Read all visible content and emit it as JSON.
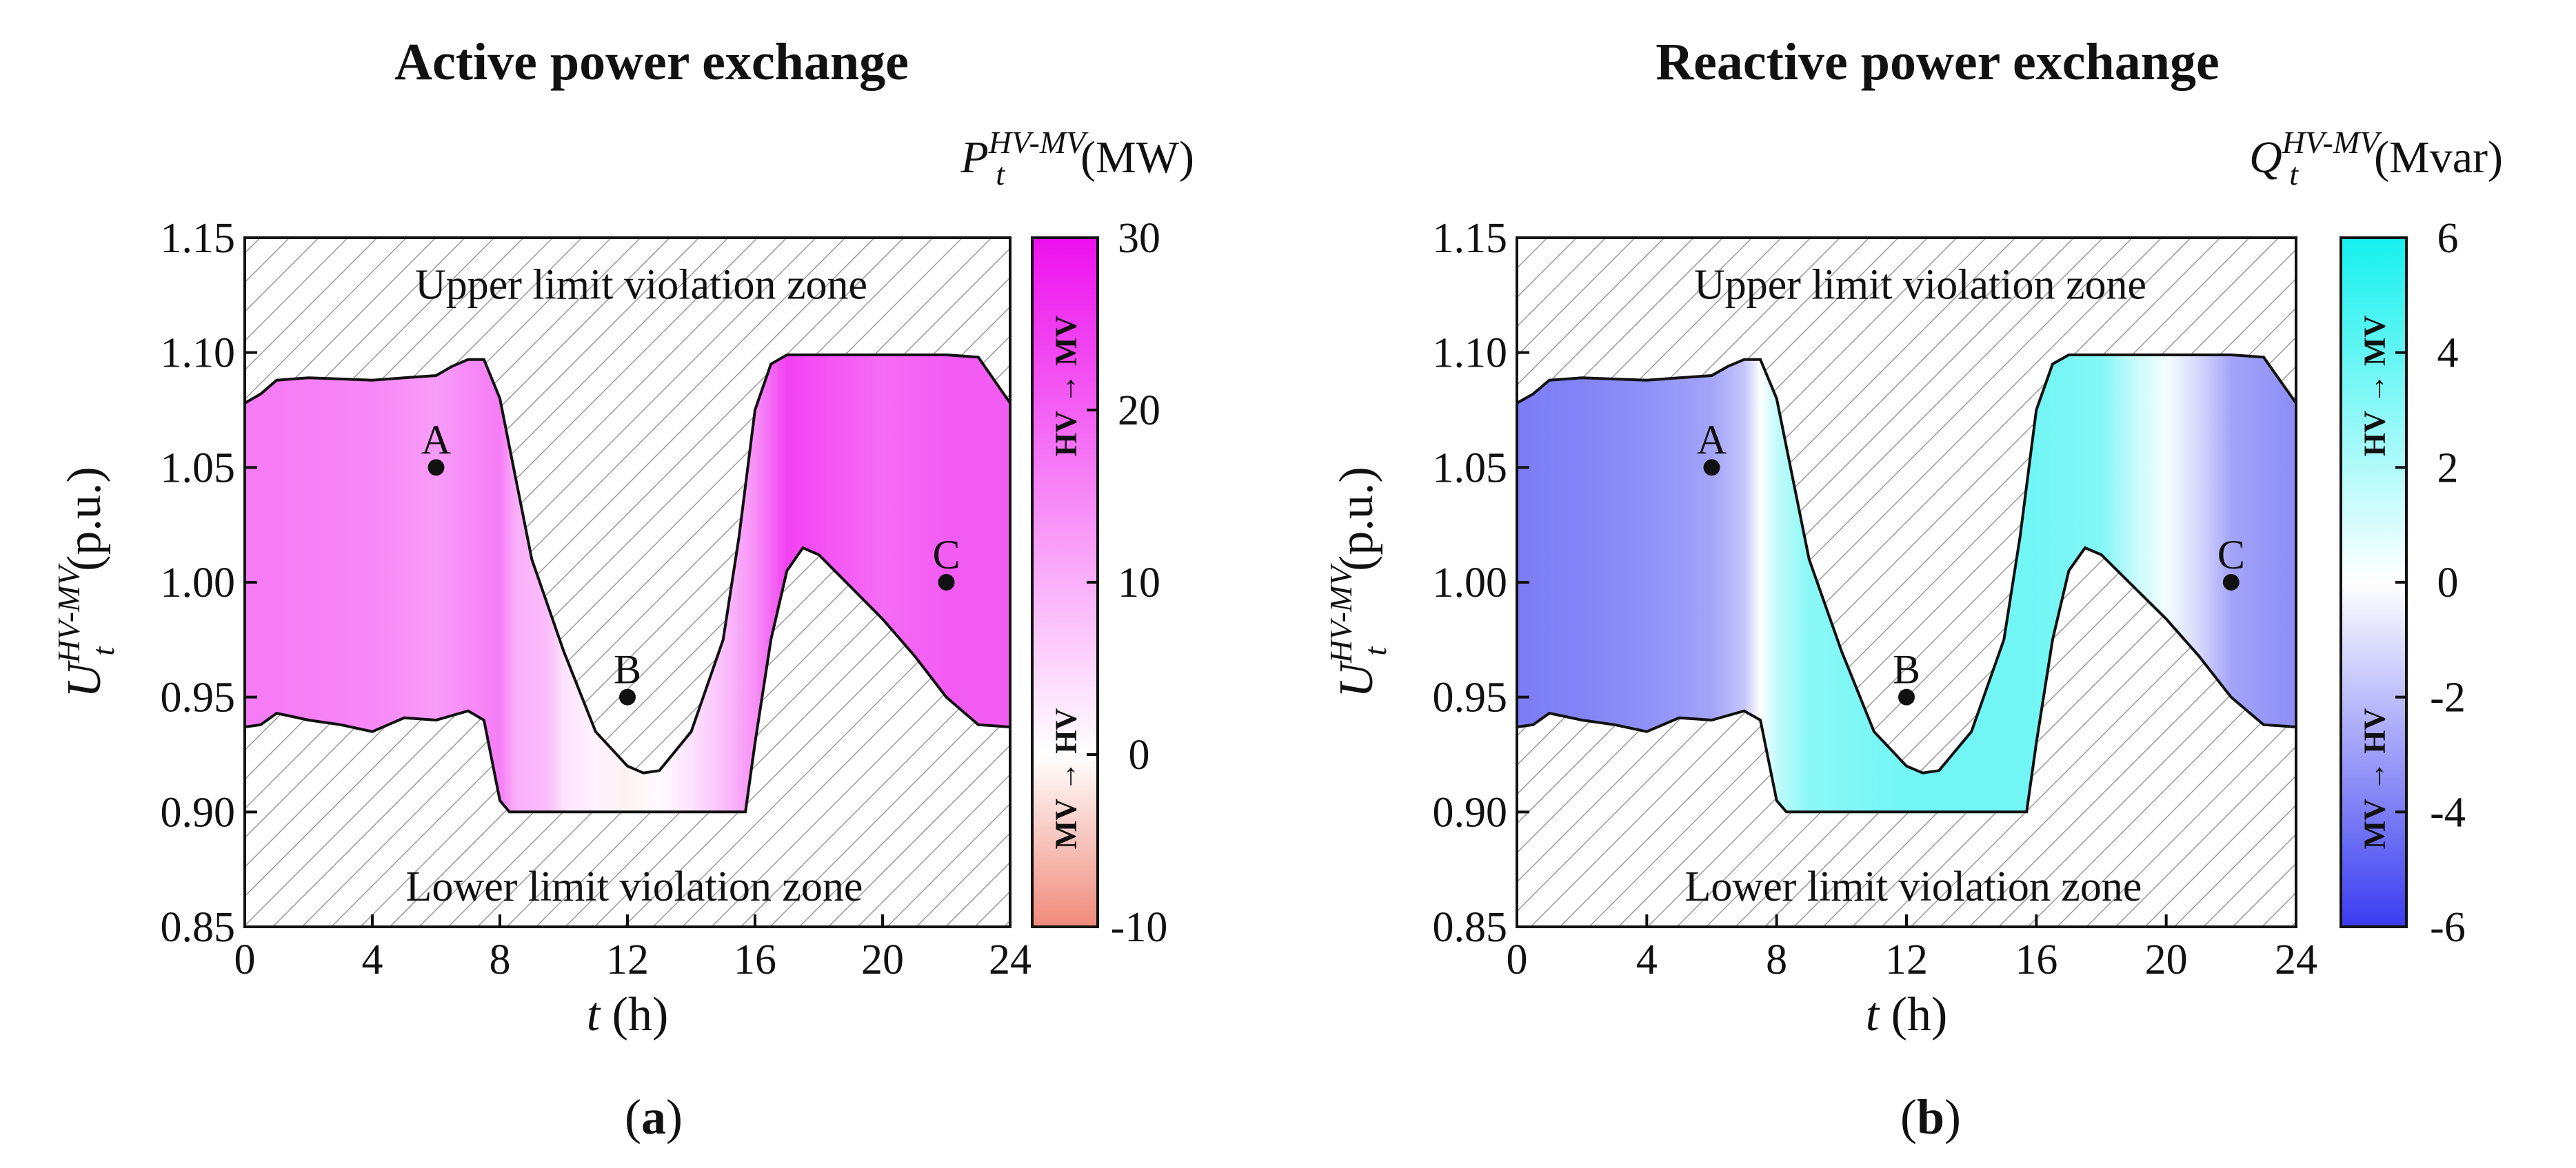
{
  "chart_data": [
    {
      "type": "area",
      "panel_label": "(a)",
      "panel_letter": "a",
      "title": "Active power exchange",
      "ylabel": {
        "main": "U",
        "sub": "t",
        "sup": "HV-MV",
        "unit": "(p.u.)"
      },
      "xlabel": {
        "var": "t",
        "unit": " (h)"
      },
      "colorbar_label": {
        "main": "P",
        "sub": "t",
        "sup": "HV-MV",
        "unit": "(MW)"
      },
      "colorbar_ticks": [
        "30",
        "20",
        "10",
        "0",
        "-10"
      ],
      "colorbar_range": [
        -10,
        30
      ],
      "colorbar_top_text": "HV → MV",
      "colorbar_bottom_text": "MV → HV",
      "colormap": {
        "positive": "#ee11ee",
        "zero": "#ffffff",
        "negative": "#f08a7a"
      },
      "xlim": [
        0,
        24
      ],
      "ylim": [
        0.85,
        1.15
      ],
      "x_ticks": [
        "0",
        "4",
        "8",
        "12",
        "16",
        "20",
        "24"
      ],
      "y_ticks": [
        "1.15",
        "1.10",
        "1.05",
        "1.00",
        "0.95",
        "0.90",
        "0.85"
      ],
      "upper_zone_text": "Upper limit violation zone",
      "lower_zone_text": "Lower limit violation zone",
      "upper_boundary": [
        [
          0,
          1.078
        ],
        [
          0.5,
          1.082
        ],
        [
          1,
          1.088
        ],
        [
          2,
          1.089
        ],
        [
          4,
          1.088
        ],
        [
          5,
          1.089
        ],
        [
          6,
          1.09
        ],
        [
          6.5,
          1.094
        ],
        [
          7,
          1.097
        ],
        [
          7.5,
          1.097
        ],
        [
          8,
          1.08
        ],
        [
          8.5,
          1.045
        ],
        [
          9,
          1.01
        ],
        [
          10,
          0.97
        ],
        [
          11,
          0.935
        ],
        [
          12,
          0.92
        ],
        [
          12.5,
          0.917
        ],
        [
          13,
          0.918
        ],
        [
          14,
          0.935
        ],
        [
          15,
          0.975
        ],
        [
          15.5,
          1.02
        ],
        [
          16,
          1.075
        ],
        [
          16.5,
          1.095
        ],
        [
          17,
          1.099
        ],
        [
          22,
          1.099
        ],
        [
          23,
          1.098
        ],
        [
          24,
          1.078
        ]
      ],
      "lower_boundary": [
        [
          0,
          0.937
        ],
        [
          0.5,
          0.938
        ],
        [
          1,
          0.943
        ],
        [
          2,
          0.94
        ],
        [
          3,
          0.938
        ],
        [
          4,
          0.935
        ],
        [
          5,
          0.941
        ],
        [
          6,
          0.94
        ],
        [
          7,
          0.944
        ],
        [
          7.5,
          0.94
        ],
        [
          8,
          0.905
        ],
        [
          8.3,
          0.9
        ],
        [
          15.7,
          0.9
        ],
        [
          16,
          0.93
        ],
        [
          16.5,
          0.975
        ],
        [
          17,
          1.005
        ],
        [
          17.5,
          1.015
        ],
        [
          18,
          1.012
        ],
        [
          19,
          0.998
        ],
        [
          20,
          0.984
        ],
        [
          21,
          0.968
        ],
        [
          22,
          0.95
        ],
        [
          23,
          0.938
        ],
        [
          24,
          0.937
        ]
      ],
      "color_profile": [
        [
          0,
          16.5
        ],
        [
          1,
          16.5
        ],
        [
          4,
          15.0
        ],
        [
          6,
          12.5
        ],
        [
          7,
          14.5
        ],
        [
          8,
          16.5
        ],
        [
          8.5,
          10.0
        ],
        [
          9.5,
          8.5
        ],
        [
          10,
          3.5
        ],
        [
          11,
          1.5
        ],
        [
          12,
          -1.0
        ],
        [
          13,
          0.5
        ],
        [
          14,
          3.5
        ],
        [
          15,
          8.0
        ],
        [
          16,
          14.0
        ],
        [
          17,
          24.0
        ],
        [
          18,
          22.0
        ],
        [
          20,
          18.5
        ],
        [
          22,
          20.5
        ],
        [
          24,
          20.5
        ]
      ],
      "points": [
        {
          "label": "A",
          "x": 6,
          "y": 1.05,
          "label_side": "top"
        },
        {
          "label": "B",
          "x": 12,
          "y": 0.95,
          "label_side": "top"
        },
        {
          "label": "C",
          "x": 22,
          "y": 1.0,
          "label_side": "top"
        }
      ]
    },
    {
      "type": "area",
      "panel_label": "(b)",
      "panel_letter": "b",
      "title": "Reactive power exchange",
      "ylabel": {
        "main": "U",
        "sub": "t",
        "sup": "HV-MV",
        "unit": "(p.u.)"
      },
      "xlabel": {
        "var": "t",
        "unit": " (h)"
      },
      "colorbar_label": {
        "main": "Q",
        "sub": "t",
        "sup": "HV-MV",
        "unit": "(Mvar)"
      },
      "colorbar_ticks": [
        "6",
        "4",
        "2",
        "0",
        "-2",
        "-4",
        "-6"
      ],
      "colorbar_range": [
        -6,
        6
      ],
      "colorbar_top_text": "HV → MV",
      "colorbar_bottom_text": "MV → HV",
      "colormap": {
        "positive": "#14f0ee",
        "zero": "#ffffff",
        "negative": "#3a3cf0"
      },
      "xlim": [
        0,
        24
      ],
      "ylim": [
        0.85,
        1.15
      ],
      "x_ticks": [
        "0",
        "4",
        "8",
        "12",
        "16",
        "20",
        "24"
      ],
      "y_ticks": [
        "1.15",
        "1.10",
        "1.05",
        "1.00",
        "0.95",
        "0.90",
        "0.85"
      ],
      "upper_zone_text": "Upper limit violation zone",
      "lower_zone_text": "Lower limit violation zone",
      "upper_boundary": [
        [
          0,
          1.078
        ],
        [
          0.5,
          1.082
        ],
        [
          1,
          1.088
        ],
        [
          2,
          1.089
        ],
        [
          4,
          1.088
        ],
        [
          5,
          1.089
        ],
        [
          6,
          1.09
        ],
        [
          6.5,
          1.094
        ],
        [
          7,
          1.097
        ],
        [
          7.5,
          1.097
        ],
        [
          8,
          1.08
        ],
        [
          8.5,
          1.045
        ],
        [
          9,
          1.01
        ],
        [
          10,
          0.97
        ],
        [
          11,
          0.935
        ],
        [
          12,
          0.92
        ],
        [
          12.5,
          0.917
        ],
        [
          13,
          0.918
        ],
        [
          14,
          0.935
        ],
        [
          15,
          0.975
        ],
        [
          15.5,
          1.02
        ],
        [
          16,
          1.075
        ],
        [
          16.5,
          1.095
        ],
        [
          17,
          1.099
        ],
        [
          22,
          1.099
        ],
        [
          23,
          1.098
        ],
        [
          24,
          1.078
        ]
      ],
      "lower_boundary": [
        [
          0,
          0.937
        ],
        [
          0.5,
          0.938
        ],
        [
          1,
          0.943
        ],
        [
          2,
          0.94
        ],
        [
          3,
          0.938
        ],
        [
          4,
          0.935
        ],
        [
          5,
          0.941
        ],
        [
          6,
          0.94
        ],
        [
          7,
          0.944
        ],
        [
          7.5,
          0.94
        ],
        [
          8,
          0.905
        ],
        [
          8.3,
          0.9
        ],
        [
          15.7,
          0.9
        ],
        [
          16,
          0.93
        ],
        [
          16.5,
          0.975
        ],
        [
          17,
          1.005
        ],
        [
          17.5,
          1.015
        ],
        [
          18,
          1.012
        ],
        [
          19,
          0.998
        ],
        [
          20,
          0.984
        ],
        [
          21,
          0.968
        ],
        [
          22,
          0.95
        ],
        [
          23,
          0.938
        ],
        [
          24,
          0.937
        ]
      ],
      "color_profile": [
        [
          0,
          -4.0
        ],
        [
          2,
          -3.8
        ],
        [
          4,
          -3.4
        ],
        [
          6,
          -2.8
        ],
        [
          7,
          -1.8
        ],
        [
          7.5,
          0.0
        ],
        [
          8,
          1.5
        ],
        [
          9,
          3.0
        ],
        [
          12,
          3.6
        ],
        [
          16,
          3.6
        ],
        [
          18,
          3.2
        ],
        [
          19,
          1.5
        ],
        [
          20,
          0.3
        ],
        [
          21,
          -1.2
        ],
        [
          22,
          -2.8
        ],
        [
          24,
          -3.5
        ]
      ],
      "points": [
        {
          "label": "A",
          "x": 6,
          "y": 1.05,
          "label_side": "top"
        },
        {
          "label": "B",
          "x": 12,
          "y": 0.95,
          "label_side": "top"
        },
        {
          "label": "C",
          "x": 22,
          "y": 1.0,
          "label_side": "top"
        }
      ]
    }
  ]
}
